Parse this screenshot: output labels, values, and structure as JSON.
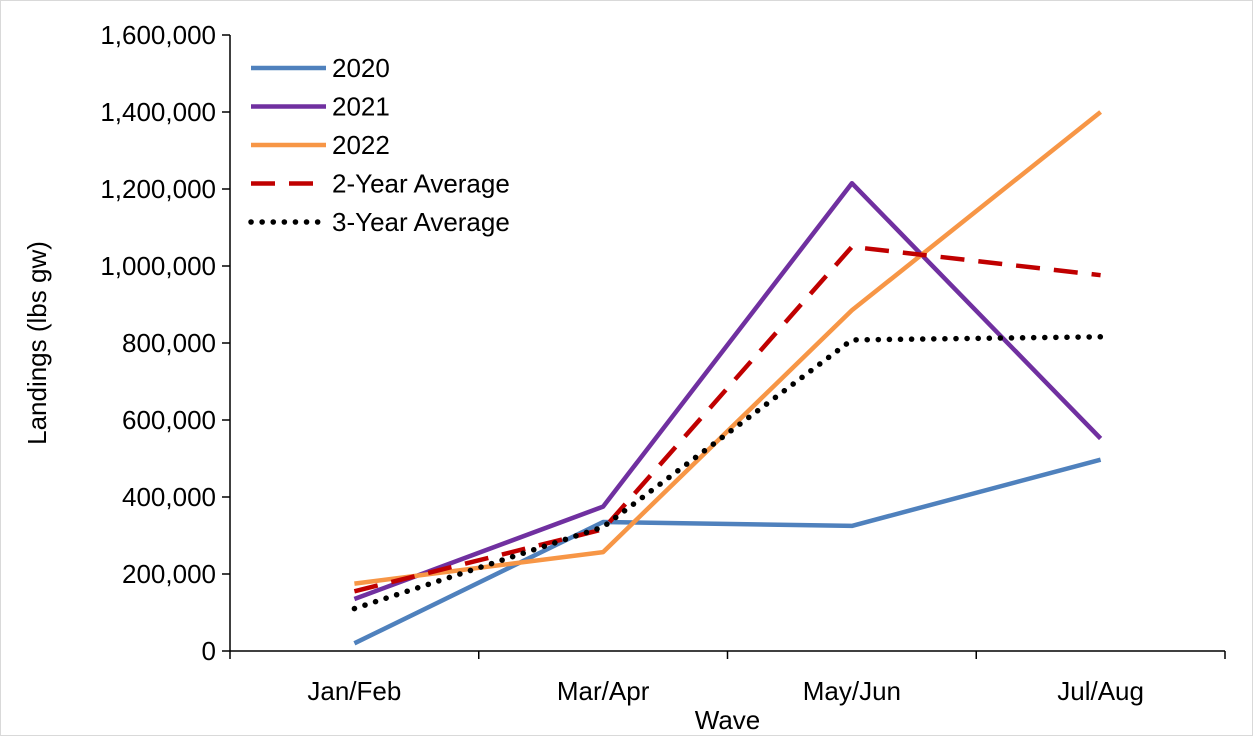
{
  "chart_data": {
    "type": "line",
    "title": "",
    "xlabel": "Wave",
    "ylabel": "Landings (lbs gw)",
    "categories": [
      "Jan/Feb",
      "Mar/Apr",
      "May/Jun",
      "Jul/Aug"
    ],
    "ylim": [
      0,
      1600000
    ],
    "yticks": [
      0,
      200000,
      400000,
      600000,
      800000,
      1000000,
      1200000,
      1400000,
      1600000
    ],
    "ytick_labels": [
      "0",
      "200,000",
      "400,000",
      "600,000",
      "800,000",
      "1,000,000",
      "1,200,000",
      "1,400,000",
      "1,600,000"
    ],
    "grid": false,
    "legend_position": "top-left",
    "series": [
      {
        "name": "2020",
        "values": [
          20000,
          335000,
          325000,
          497000
        ],
        "color": "#4f81bd",
        "style": "solid"
      },
      {
        "name": "2021",
        "values": [
          135000,
          375000,
          1215000,
          552000
        ],
        "color": "#7030a0",
        "style": "solid"
      },
      {
        "name": "2022",
        "values": [
          175000,
          257000,
          885000,
          1400000
        ],
        "color": "#f79646",
        "style": "solid"
      },
      {
        "name": "2-Year Average",
        "values": [
          155000,
          316000,
          1050000,
          976000
        ],
        "color": "#c00000",
        "style": "dashed"
      },
      {
        "name": "3-Year Average",
        "values": [
          110000,
          322000,
          808000,
          816000
        ],
        "color": "#000000",
        "style": "dotted"
      }
    ]
  }
}
